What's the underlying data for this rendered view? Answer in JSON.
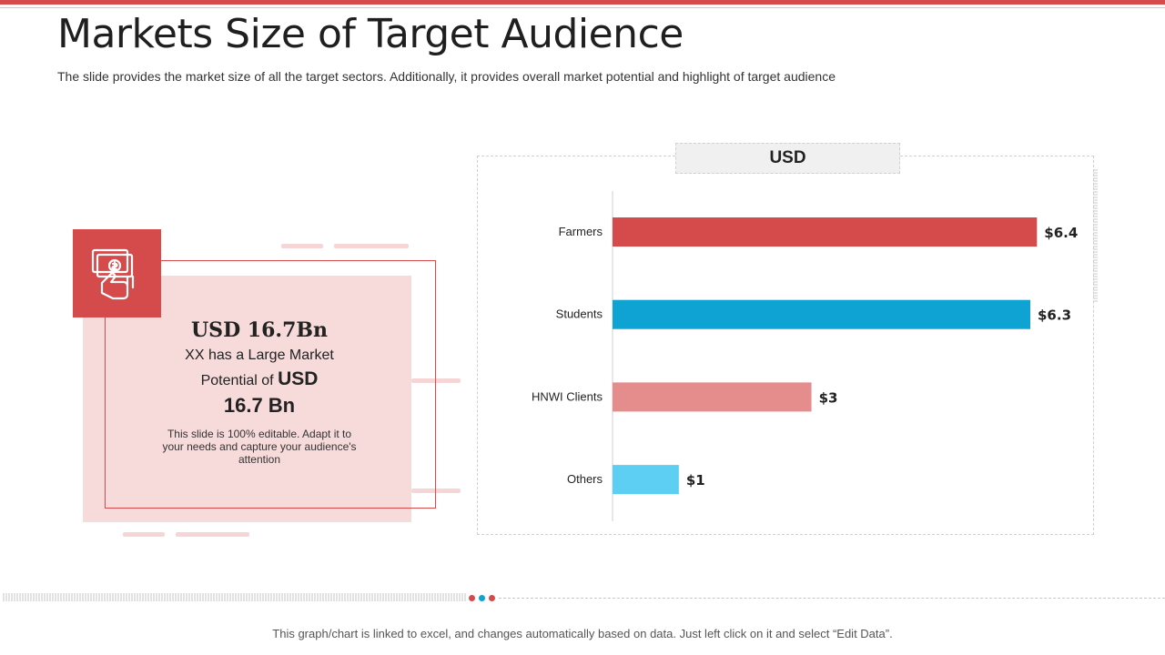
{
  "slide": {
    "title": "Markets Size of Target Audience",
    "subtitle": "The slide provides the market size of all the target sectors. Additionally,  it provides overall market potential and highlight of target audience",
    "accent_color": "#d54a4a"
  },
  "card": {
    "heading": "USD 16.7Bn",
    "line1": "XX has a Large Market",
    "line2_prefix": "Potential of",
    "line2_emph": "USD",
    "line3": "16.7 Bn",
    "note": "This slide is 100% editable. Adapt it to your needs and capture your audience's attention",
    "icon": "money-hand-icon"
  },
  "chart_data": {
    "type": "bar",
    "orientation": "horizontal",
    "title": "USD",
    "categories": [
      "Farmers",
      "Students",
      "HNWI Clients",
      "Others"
    ],
    "values": [
      6.4,
      6.3,
      3,
      1
    ],
    "data_labels": [
      "$6.4",
      "$6.3",
      "$3",
      "$1"
    ],
    "colors": [
      "#d54a4a",
      "#0ea3d3",
      "#e58d8d",
      "#5ccff2"
    ],
    "xlim": [
      0,
      7
    ],
    "grid": false
  },
  "footer": {
    "text": "This graph/chart is linked to excel, and changes automatically based on data. Just left click on it and select “Edit Data”."
  },
  "dots": {
    "colors": [
      "#d54a4a",
      "#0ea3d3",
      "#d54a4a"
    ]
  }
}
